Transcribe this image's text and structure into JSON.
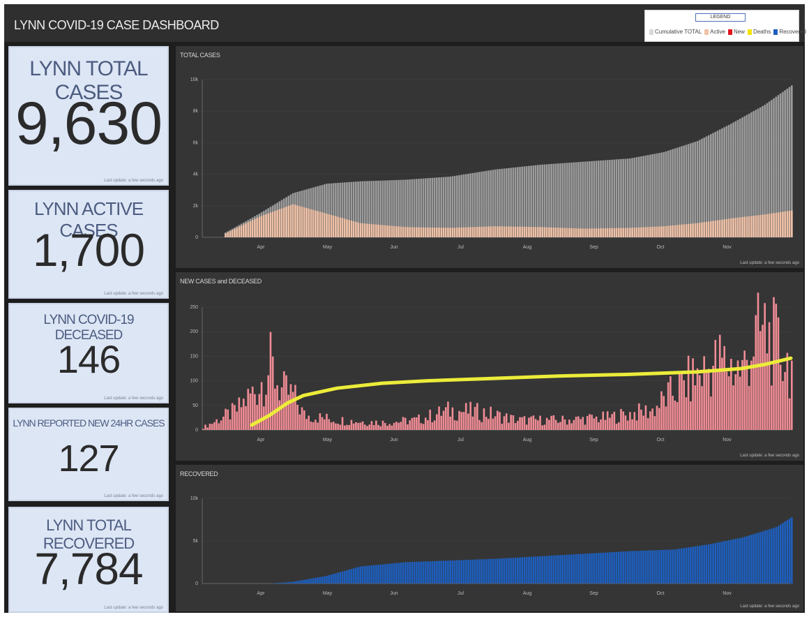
{
  "app": {
    "title": "LYNN COVID-19 CASE DASHBOARD"
  },
  "legend": {
    "title": "LEGEND",
    "items": [
      {
        "label": "Cumulative TOTAL",
        "color": "#d8d8d8"
      },
      {
        "label": "Active",
        "color": "#f0c2a8"
      },
      {
        "label": "New",
        "color": "#e0141e"
      },
      {
        "label": "Deaths",
        "color": "#f4e400"
      },
      {
        "label": "Recovered",
        "color": "#1d5fbf"
      }
    ]
  },
  "cards": [
    {
      "label": "LYNN TOTAL CASES",
      "value": "9,630",
      "updated": "Last update: a few seconds ago"
    },
    {
      "label": "LYNN ACTIVE CASES",
      "value": "1,700",
      "updated": "Last update: a few seconds ago"
    },
    {
      "label": "LYNN COVID-19 DECEASED",
      "value": "146",
      "updated": "Last update: a few seconds ago"
    },
    {
      "label": "LYNN REPORTED NEW 24HR CASES",
      "value": "127",
      "updated": "Last update: a few seconds ago"
    },
    {
      "label": "LYNN TOTAL RECOVERED",
      "value": "7,784",
      "updated": "Last update: a few seconds ago"
    }
  ],
  "panels": [
    {
      "title": "TOTAL CASES",
      "updated": "Last update: a few seconds ago"
    },
    {
      "title": "NEW CASES and DECEASED",
      "updated": "Last update: a few seconds ago"
    },
    {
      "title": "RECOVERED",
      "updated": "Last update: a few seconds ago"
    }
  ],
  "colors": {
    "total": "#9c9c9c",
    "active": "#f0c2a8",
    "new": "#f08c95",
    "deaths": "#ecec3a",
    "recovered": "#1d5fbf"
  },
  "chart_data": [
    {
      "type": "bar",
      "title": "TOTAL CASES",
      "x_ticks": [
        "Apr",
        "May",
        "Jun",
        "Jul",
        "Aug",
        "Sep",
        "Oct",
        "Nov"
      ],
      "y_ticks": [
        "0",
        "2k",
        "4k",
        "6k",
        "8k",
        "10k"
      ],
      "ylim": [
        0,
        10000
      ],
      "series": [
        {
          "name": "Cumulative TOTAL",
          "points": [
            [
              0,
              0
            ],
            [
              10,
              300
            ],
            [
              25,
              1500
            ],
            [
              40,
              2800
            ],
            [
              55,
              3400
            ],
            [
              70,
              3550
            ],
            [
              90,
              3650
            ],
            [
              110,
              3850
            ],
            [
              130,
              4300
            ],
            [
              150,
              4600
            ],
            [
              170,
              4800
            ],
            [
              190,
              5000
            ],
            [
              205,
              5400
            ],
            [
              220,
              6100
            ],
            [
              235,
              7200
            ],
            [
              250,
              8400
            ],
            [
              262,
              9630
            ]
          ]
        },
        {
          "name": "Active",
          "points": [
            [
              0,
              0
            ],
            [
              10,
              250
            ],
            [
              25,
              1300
            ],
            [
              40,
              2100
            ],
            [
              55,
              1500
            ],
            [
              70,
              900
            ],
            [
              90,
              650
            ],
            [
              110,
              600
            ],
            [
              130,
              700
            ],
            [
              150,
              650
            ],
            [
              170,
              550
            ],
            [
              190,
              600
            ],
            [
              205,
              700
            ],
            [
              220,
              900
            ],
            [
              235,
              1200
            ],
            [
              250,
              1450
            ],
            [
              262,
              1700
            ]
          ]
        }
      ]
    },
    {
      "type": "bar",
      "title": "NEW CASES and DECEASED",
      "x_ticks": [
        "Apr",
        "May",
        "Jun",
        "Jul",
        "Aug",
        "Sep",
        "Oct",
        "Nov"
      ],
      "y_ticks": [
        "0",
        "50",
        "100",
        "150",
        "200",
        "250"
      ],
      "ylim": [
        0,
        250
      ],
      "series": [
        {
          "name": "New",
          "points": [
            [
              0,
              5
            ],
            [
              15,
              40
            ],
            [
              25,
              90
            ],
            [
              30,
              130
            ],
            [
              35,
              80
            ],
            [
              40,
              70
            ],
            [
              45,
              30
            ],
            [
              60,
              20
            ],
            [
              80,
              15
            ],
            [
              95,
              20
            ],
            [
              110,
              40
            ],
            [
              125,
              35
            ],
            [
              140,
              20
            ],
            [
              160,
              20
            ],
            [
              180,
              25
            ],
            [
              200,
              40
            ],
            [
              210,
              80
            ],
            [
              220,
              110
            ],
            [
              230,
              140
            ],
            [
              240,
              120
            ],
            [
              245,
              180
            ],
            [
              250,
              200
            ],
            [
              255,
              170
            ],
            [
              262,
              127
            ]
          ]
        },
        {
          "name": "Deaths",
          "points": [
            [
              22,
              10
            ],
            [
              30,
              30
            ],
            [
              38,
              55
            ],
            [
              45,
              70
            ],
            [
              60,
              85
            ],
            [
              80,
              95
            ],
            [
              100,
              100
            ],
            [
              130,
              105
            ],
            [
              160,
              110
            ],
            [
              190,
              113
            ],
            [
              220,
              118
            ],
            [
              240,
              125
            ],
            [
              250,
              133
            ],
            [
              262,
              146
            ]
          ]
        }
      ]
    },
    {
      "type": "bar",
      "title": "RECOVERED",
      "x_ticks": [
        "Apr",
        "May",
        "Jun",
        "Jul",
        "Aug",
        "Sep",
        "Oct",
        "Nov"
      ],
      "y_ticks": [
        "0",
        "5k",
        "10k"
      ],
      "ylim": [
        0,
        10000
      ],
      "series": [
        {
          "name": "Recovered",
          "points": [
            [
              0,
              0
            ],
            [
              30,
              0
            ],
            [
              40,
              200
            ],
            [
              55,
              900
            ],
            [
              70,
              2000
            ],
            [
              90,
              2500
            ],
            [
              110,
              2700
            ],
            [
              130,
              2900
            ],
            [
              150,
              3200
            ],
            [
              170,
              3500
            ],
            [
              190,
              3800
            ],
            [
              210,
              4000
            ],
            [
              225,
              4600
            ],
            [
              240,
              5400
            ],
            [
              255,
              6600
            ],
            [
              262,
              7784
            ]
          ]
        }
      ]
    }
  ]
}
